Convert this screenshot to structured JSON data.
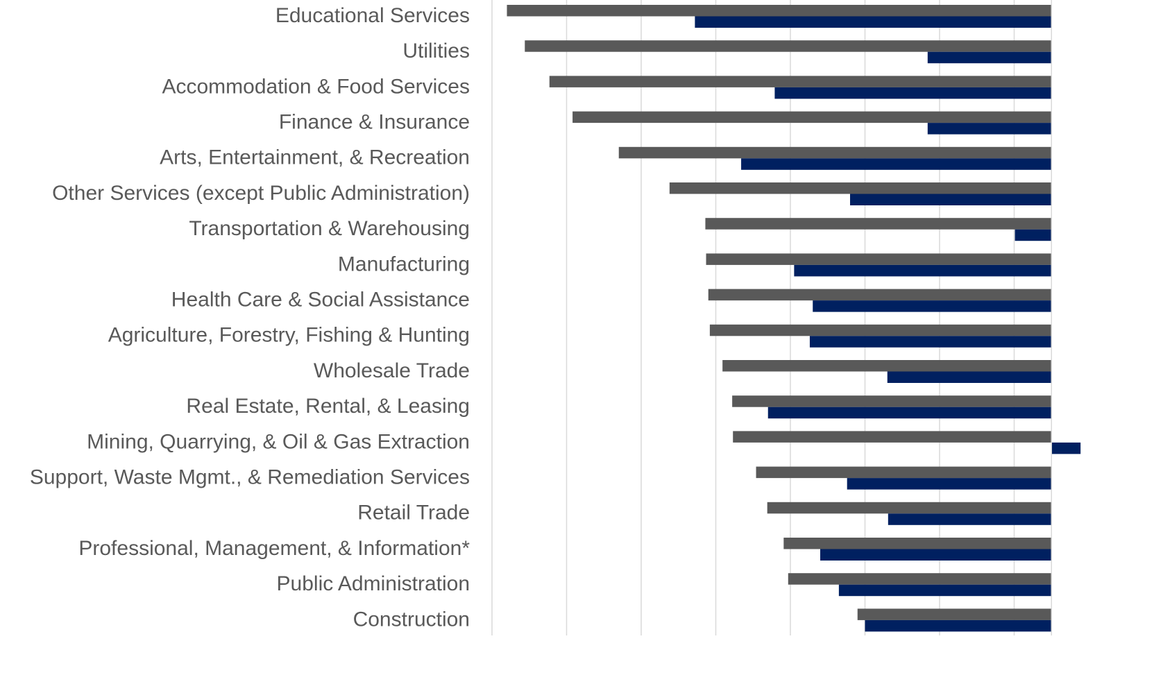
{
  "chart_data": {
    "type": "bar",
    "orientation": "horizontal",
    "categories": [
      "Educational Services",
      "Utilities",
      "Accommodation & Food Services",
      "Finance & Insurance",
      "Arts, Entertainment, & Recreation",
      "Other Services (except Public Administration)",
      "Transportation & Warehousing",
      "Manufacturing",
      "Health Care & Social Assistance",
      "Agriculture, Forestry, Fishing & Hunting",
      "Wholesale Trade",
      "Real Estate, Rental, & Leasing",
      "Mining, Quarrying, & Oil & Gas Extraction",
      "Support, Waste Mgmt., & Remediation Services",
      "Retail Trade",
      "Professional, Management, & Information*",
      "Public Administration",
      "Construction"
    ],
    "series": [
      {
        "color": "#595959",
        "values": [
          -73.0,
          -70.6,
          -67.3,
          -64.2,
          -58.0,
          -51.2,
          -46.4,
          -46.3,
          -46.0,
          -45.8,
          -44.1,
          -42.8,
          -42.7,
          -39.6,
          -38.1,
          -35.9,
          -35.3,
          -26.0
        ]
      },
      {
        "color": "#002060",
        "values": [
          -47.8,
          -16.6,
          -37.1,
          -16.6,
          -41.6,
          -27.0,
          -4.9,
          -34.5,
          -32.0,
          -32.4,
          -22.0,
          -38.0,
          3.9,
          -27.4,
          -21.9,
          -31.0,
          -28.5,
          -25.0
        ]
      }
    ],
    "xlim": [
      -75,
      5
    ],
    "xticks": [
      -65,
      -55,
      -45,
      -35,
      -25,
      -15,
      -5
    ],
    "grid": true
  }
}
